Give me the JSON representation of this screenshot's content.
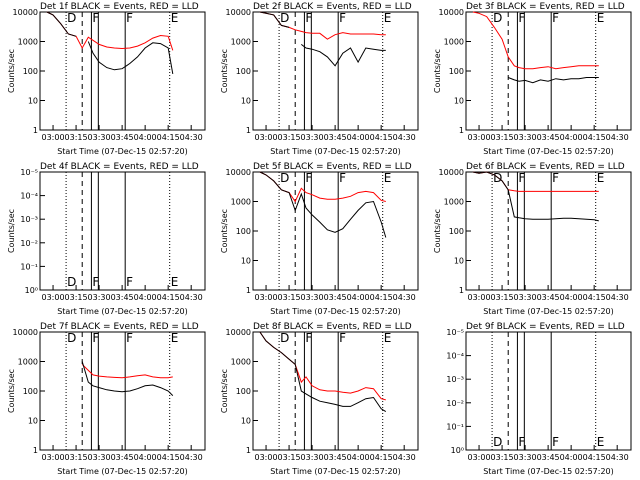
{
  "chart_data": [
    {
      "type": "line",
      "title": "Det 1f BLACK = Events, RED = LLD",
      "x_label": "Start Time (07-Dec-15 02:57:20)",
      "y_label": "Counts/sec",
      "log_y": true,
      "x": [
        176,
        180,
        185,
        190,
        195,
        199,
        203,
        206,
        210,
        215,
        220,
        225,
        230,
        235,
        240,
        245,
        250,
        255,
        258
      ],
      "series": [
        {
          "name": "LLD",
          "color": "#ff0000",
          "values": [
            10000,
            8000,
            4000,
            1800,
            1500,
            600,
            1400,
            1100,
            800,
            650,
            600,
            580,
            600,
            700,
            900,
            1300,
            1600,
            1500,
            500
          ]
        },
        {
          "name": "Events",
          "color": "#000000",
          "values": [
            10000,
            8000,
            4000,
            1800,
            1500,
            null,
            1000,
            400,
            200,
            130,
            110,
            120,
            180,
            300,
            600,
            900,
            850,
            600,
            80
          ]
        }
      ],
      "xlim": [
        171.5,
        279
      ],
      "ylim": [
        1,
        10000
      ],
      "yticks": [
        1,
        10,
        100,
        1000,
        10000
      ]
    },
    {
      "type": "line",
      "title": "Det 2f BLACK = Events, RED = LLD",
      "x_label": "Start Time (07-Dec-15 02:57:20)",
      "y_label": "Counts/sec",
      "log_y": true,
      "x": [
        176,
        180,
        185,
        190,
        195,
        199,
        203,
        206,
        210,
        215,
        220,
        225,
        230,
        235,
        240,
        245,
        250,
        255,
        258
      ],
      "series": [
        {
          "name": "LLD",
          "color": "#ff0000",
          "values": [
            10000,
            9000,
            8000,
            3500,
            3000,
            2500,
            2200,
            2000,
            1900,
            1900,
            1200,
            1700,
            2000,
            1800,
            1800,
            1800,
            1800,
            1700,
            1700
          ]
        },
        {
          "name": "Events",
          "color": "#000000",
          "values": [
            10000,
            9000,
            8000,
            3500,
            3000,
            null,
            800,
            600,
            550,
            450,
            300,
            150,
            400,
            600,
            200,
            600,
            550,
            500,
            500
          ]
        }
      ],
      "xlim": [
        171.5,
        279
      ],
      "ylim": [
        1,
        10000
      ],
      "yticks": [
        1,
        10,
        100,
        1000,
        10000
      ]
    },
    {
      "type": "line",
      "title": "Det 3f BLACK = Events, RED = LLD",
      "x_label": "Start Time (07-Dec-15 02:57:20)",
      "y_label": "Counts/sec",
      "log_y": true,
      "x": [
        176,
        180,
        185,
        190,
        195,
        199,
        203,
        206,
        210,
        215,
        220,
        225,
        230,
        235,
        240,
        245,
        250,
        255,
        258
      ],
      "series": [
        {
          "name": "LLD",
          "color": "#ff0000",
          "values": [
            10000,
            9000,
            7000,
            3000,
            1200,
            300,
            150,
            130,
            120,
            120,
            130,
            140,
            120,
            130,
            140,
            150,
            150,
            150,
            150
          ]
        },
        {
          "name": "Events",
          "color": "#000000",
          "values": [
            null,
            null,
            null,
            null,
            null,
            60,
            50,
            45,
            48,
            40,
            50,
            45,
            55,
            50,
            55,
            55,
            60,
            60,
            60
          ]
        }
      ],
      "xlim": [
        171.5,
        279
      ],
      "ylim": [
        1,
        10000
      ],
      "yticks": [
        1,
        10,
        100,
        1000,
        10000
      ]
    },
    {
      "type": "line",
      "title": "Det 4f BLACK = Events, RED = LLD",
      "x_label": "Start Time (07-Dec-15 02:57:20)",
      "y_label": "Counts/sec",
      "log_y": true,
      "x": [],
      "series": [],
      "xlim": [
        171.5,
        279
      ],
      "ylim": [
        1,
        1e-05
      ],
      "yticks": [
        {
          "value": 1,
          "label": "10⁰"
        },
        {
          "value": 0.1,
          "label": "10⁻¹"
        },
        {
          "value": 0.01,
          "label": "10⁻²"
        },
        {
          "value": 0.001,
          "label": "10⁻³"
        },
        {
          "value": 0.0001,
          "label": "10⁻⁴"
        },
        {
          "value": 1e-05,
          "label": "10⁻⁵"
        }
      ]
    },
    {
      "type": "line",
      "title": "Det 5f BLACK = Events, RED = LLD",
      "x_label": "Start Time (07-Dec-15 02:57:20)",
      "y_label": "Counts/sec",
      "log_y": true,
      "x": [
        176,
        180,
        185,
        190,
        195,
        199,
        203,
        206,
        210,
        215,
        220,
        225,
        230,
        235,
        240,
        245,
        250,
        255,
        258
      ],
      "series": [
        {
          "name": "LLD",
          "color": "#ff0000",
          "values": [
            10000,
            8000,
            5000,
            2500,
            2000,
            1000,
            2800,
            2000,
            1700,
            1300,
            1200,
            1200,
            1300,
            1500,
            2000,
            2200,
            2000,
            1100,
            1000
          ]
        },
        {
          "name": "Events",
          "color": "#000000",
          "values": [
            10000,
            8000,
            5000,
            2500,
            2000,
            500,
            1800,
            600,
            350,
            200,
            110,
            90,
            120,
            250,
            500,
            900,
            1000,
            200,
            60
          ]
        }
      ],
      "xlim": [
        171.5,
        279
      ],
      "ylim": [
        1,
        10000
      ],
      "yticks": [
        1,
        10,
        100,
        1000,
        10000
      ]
    },
    {
      "type": "line",
      "title": "Det 6f BLACK = Events, RED = LLD",
      "x_label": "Start Time (07-Dec-15 02:57:20)",
      "y_label": "Counts/sec",
      "log_y": true,
      "x": [
        176,
        180,
        185,
        190,
        195,
        199,
        203,
        206,
        210,
        215,
        220,
        225,
        230,
        235,
        240,
        245,
        250,
        255,
        258
      ],
      "series": [
        {
          "name": "LLD",
          "color": "#ff0000",
          "values": [
            10000,
            9000,
            10000,
            8000,
            5000,
            2500,
            2300,
            2200,
            2200,
            2200,
            2200,
            2200,
            2200,
            2200,
            2200,
            2200,
            2200,
            2200,
            2200
          ]
        },
        {
          "name": "Events",
          "color": "#000000",
          "values": [
            10000,
            9000,
            10000,
            8000,
            5000,
            2500,
            300,
            280,
            260,
            250,
            250,
            250,
            260,
            270,
            270,
            260,
            250,
            240,
            220
          ]
        }
      ],
      "xlim": [
        171.5,
        279
      ],
      "ylim": [
        1,
        10000
      ],
      "yticks": [
        1,
        10,
        100,
        1000,
        10000
      ]
    },
    {
      "type": "line",
      "title": "Det 7f BLACK = Events, RED = LLD",
      "x_label": "Start Time (07-Dec-15 02:57:20)",
      "y_label": "Counts/sec",
      "log_y": true,
      "x": [
        176,
        180,
        185,
        190,
        195,
        199,
        203,
        206,
        210,
        215,
        220,
        225,
        230,
        235,
        240,
        245,
        250,
        255,
        258
      ],
      "series": [
        {
          "name": "LLD",
          "color": "#ff0000",
          "values": [
            null,
            null,
            null,
            null,
            null,
            800,
            500,
            350,
            320,
            300,
            290,
            280,
            300,
            330,
            350,
            300,
            280,
            280,
            300
          ]
        },
        {
          "name": "Events",
          "color": "#000000",
          "values": [
            null,
            null,
            null,
            null,
            null,
            1000,
            200,
            150,
            130,
            110,
            100,
            95,
            100,
            120,
            150,
            160,
            130,
            100,
            70
          ]
        }
      ],
      "xlim": [
        171.5,
        279
      ],
      "ylim": [
        1,
        10000
      ],
      "yticks": [
        1,
        10,
        100,
        1000,
        10000
      ]
    },
    {
      "type": "line",
      "title": "Det 8f BLACK = Events, RED = LLD",
      "x_label": "Start Time (07-Dec-15 02:57:20)",
      "y_label": "Counts/sec",
      "log_y": true,
      "x": [
        176,
        180,
        185,
        190,
        195,
        199,
        203,
        206,
        210,
        215,
        220,
        225,
        230,
        235,
        240,
        245,
        250,
        255,
        258
      ],
      "series": [
        {
          "name": "LLD",
          "color": "#ff0000",
          "values": [
            10000,
            5000,
            3000,
            2000,
            1200,
            800,
            200,
            300,
            150,
            110,
            100,
            100,
            90,
            85,
            100,
            130,
            120,
            55,
            50
          ]
        },
        {
          "name": "Events",
          "color": "#000000",
          "values": [
            10000,
            5000,
            3000,
            2000,
            1200,
            800,
            100,
            80,
            60,
            45,
            40,
            35,
            30,
            30,
            40,
            55,
            60,
            25,
            20
          ]
        }
      ],
      "xlim": [
        171.5,
        279
      ],
      "ylim": [
        1,
        10000
      ],
      "yticks": [
        1,
        10,
        100,
        1000,
        10000
      ]
    },
    {
      "type": "line",
      "title": "Det 9f BLACK = Events, RED = LLD",
      "x_label": "Start Time (07-Dec-15 02:57:20)",
      "log_y": true,
      "x": [],
      "series": [],
      "xlim": [
        171.5,
        279
      ],
      "ylim": [
        1,
        1e-05
      ],
      "yticks": [
        {
          "value": 1,
          "label": "10⁰"
        },
        {
          "value": 0.1,
          "label": "10⁻¹"
        },
        {
          "value": 0.01,
          "label": "10⁻²"
        },
        {
          "value": 0.001,
          "label": "10⁻³"
        },
        {
          "value": 0.0001,
          "label": "10⁻⁴"
        },
        {
          "value": 1e-05,
          "label": "10⁻⁵"
        }
      ]
    }
  ],
  "xticks": [
    {
      "value": 180,
      "label": "03:00"
    },
    {
      "value": 195,
      "label": "03:15"
    },
    {
      "value": 210,
      "label": "03:30"
    },
    {
      "value": 225,
      "label": "03:45"
    },
    {
      "value": 240,
      "label": "04:00"
    },
    {
      "value": 255,
      "label": "04:15"
    },
    {
      "value": 270,
      "label": "04:30"
    }
  ],
  "markers": [
    {
      "x": 188.5,
      "style": "dotted",
      "label": "D"
    },
    {
      "x": 199,
      "style": "dashed"
    },
    {
      "x": 205,
      "style": "solid",
      "label": "F"
    },
    {
      "x": 209.5,
      "style": "solid"
    },
    {
      "x": 227,
      "style": "solid",
      "label": "F"
    },
    {
      "x": 256,
      "style": "dotted",
      "label": "E"
    }
  ]
}
